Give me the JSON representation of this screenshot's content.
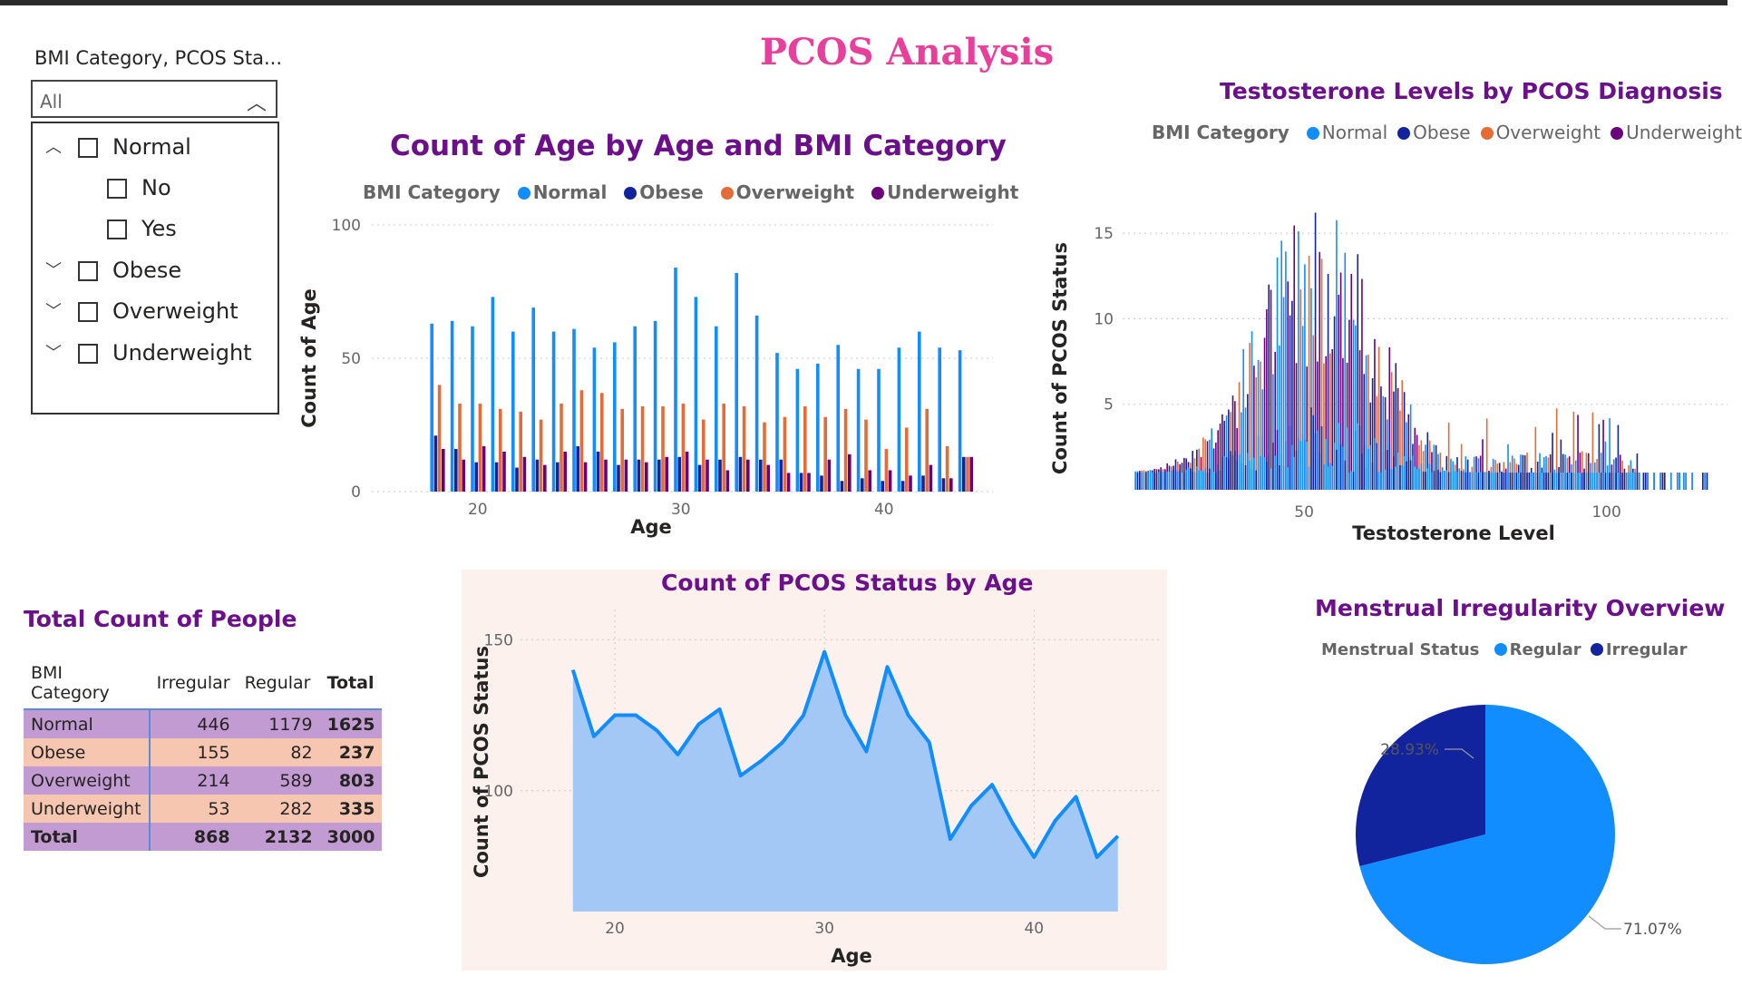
{
  "page_title": "PCOS Analysis",
  "slicer": {
    "header": "BMI Category, PCOS Sta...",
    "selected": "All",
    "items": [
      {
        "label": "Normal",
        "expanded": true,
        "children": [
          "No",
          "Yes"
        ]
      },
      {
        "label": "Obese",
        "expanded": false
      },
      {
        "label": "Overweight",
        "expanded": false
      },
      {
        "label": "Underweight",
        "expanded": false
      }
    ]
  },
  "colors": {
    "normal": "#118dff",
    "obese": "#12239e",
    "overweight": "#e66c37",
    "underweight": "#6b007b",
    "title": "#6b0f8a",
    "page_title": "#e83e9c",
    "area_fill": "#a4c8f5",
    "area_line": "#118dff",
    "area_bg": "#fdf1ee"
  },
  "bar_chart": {
    "title": "Count of Age by Age and BMI Category",
    "legend_title": "BMI Category",
    "legend": [
      "Normal",
      "Obese",
      "Overweight",
      "Underweight"
    ],
    "xlabel": "Age",
    "ylabel": "Count of Age",
    "x_ticks": [
      "20",
      "30",
      "40"
    ],
    "y_ticks": [
      "0",
      "50",
      "100"
    ]
  },
  "scatter_chart": {
    "title": "Testosterone Levels by PCOS Diagnosis",
    "legend_title": "BMI Category",
    "legend": [
      "Normal",
      "Obese",
      "Overweight",
      "Underweight"
    ],
    "xlabel": "Testosterone Level",
    "ylabel": "Count of PCOS Status",
    "x_ticks": [
      "50",
      "100"
    ],
    "y_ticks": [
      "5",
      "10",
      "15"
    ]
  },
  "table": {
    "title": "Total Count of People",
    "headers": [
      "BMI Category",
      "Irregular",
      "Regular",
      "Total"
    ],
    "rows": [
      [
        "Normal",
        "446",
        "1179",
        "1625"
      ],
      [
        "Obese",
        "155",
        "82",
        "237"
      ],
      [
        "Overweight",
        "214",
        "589",
        "803"
      ],
      [
        "Underweight",
        "53",
        "282",
        "335"
      ]
    ],
    "total": [
      "Total",
      "868",
      "2132",
      "3000"
    ]
  },
  "area_chart": {
    "title": "Count of PCOS Status by Age",
    "xlabel": "Age",
    "ylabel": "Count of PCOS Status",
    "x_ticks": [
      "20",
      "30",
      "40"
    ],
    "y_ticks": [
      "100",
      "150"
    ]
  },
  "pie_chart": {
    "title": "Menstrual Irregularity Overview",
    "legend_title": "Menstrual Status",
    "legend": [
      "Regular",
      "Irregular"
    ],
    "label_regular": "71.07%",
    "label_irregular": "28.93%"
  },
  "chart_data": [
    {
      "type": "bar",
      "title": "Count of Age by Age and BMI Category",
      "xlabel": "Age",
      "ylabel": "Count of Age",
      "ylim": [
        0,
        100
      ],
      "grid": true,
      "legend_position": "top",
      "categories": [
        18,
        19,
        20,
        21,
        22,
        23,
        24,
        25,
        26,
        27,
        28,
        29,
        30,
        31,
        32,
        33,
        34,
        35,
        36,
        37,
        38,
        39,
        40,
        41,
        42,
        43,
        44
      ],
      "series": [
        {
          "name": "Normal",
          "values": [
            63,
            64,
            62,
            73,
            60,
            69,
            60,
            61,
            54,
            56,
            62,
            64,
            84,
            73,
            62,
            82,
            66,
            52,
            46,
            48,
            55,
            46,
            46,
            54,
            60,
            54,
            53
          ]
        },
        {
          "name": "Obese",
          "values": [
            21,
            16,
            11,
            11,
            9,
            12,
            11,
            17,
            15,
            10,
            12,
            12,
            13,
            10,
            12,
            13,
            12,
            12,
            7,
            6,
            4,
            5,
            4,
            4,
            6,
            5,
            13
          ]
        },
        {
          "name": "Overweight",
          "values": [
            40,
            33,
            33,
            31,
            30,
            27,
            33,
            38,
            37,
            31,
            32,
            32,
            33,
            27,
            33,
            32,
            26,
            28,
            32,
            28,
            31,
            27,
            16,
            24,
            31,
            17,
            13
          ]
        },
        {
          "name": "Underweight",
          "values": [
            16,
            12,
            17,
            15,
            13,
            10,
            15,
            11,
            12,
            12,
            11,
            13,
            15,
            12,
            8,
            12,
            10,
            7,
            7,
            12,
            14,
            8,
            8,
            6,
            10,
            5,
            13
          ]
        }
      ]
    },
    {
      "type": "bar",
      "title": "Testosterone Levels by PCOS Diagnosis",
      "xlabel": "Testosterone Level",
      "ylabel": "Count of PCOS Status",
      "xlim": [
        20,
        120
      ],
      "ylim": [
        0,
        18
      ],
      "grid": true,
      "legend_position": "top",
      "series": [
        {
          "name": "Normal",
          "values": "distribution of ~370 values, mode near 50"
        },
        {
          "name": "Obese"
        },
        {
          "name": "Overweight"
        },
        {
          "name": "Underweight"
        }
      ]
    },
    {
      "type": "table",
      "title": "Total Count of People",
      "columns": [
        "BMI Category",
        "Irregular",
        "Regular",
        "Total"
      ],
      "rows": [
        [
          "Normal",
          446,
          1179,
          1625
        ],
        [
          "Obese",
          155,
          82,
          237
        ],
        [
          "Overweight",
          214,
          589,
          803
        ],
        [
          "Underweight",
          53,
          282,
          335
        ],
        [
          "Total",
          868,
          2132,
          3000
        ]
      ]
    },
    {
      "type": "area",
      "title": "Count of PCOS Status by Age",
      "xlabel": "Age",
      "ylabel": "Count of PCOS Status",
      "x": [
        18,
        19,
        20,
        21,
        22,
        23,
        24,
        25,
        26,
        27,
        28,
        29,
        30,
        31,
        32,
        33,
        34,
        35,
        36,
        37,
        38,
        39,
        40,
        41,
        42,
        43,
        44
      ],
      "values": [
        140,
        118,
        125,
        125,
        120,
        112,
        122,
        127,
        105,
        110,
        116,
        125,
        146,
        125,
        113,
        141,
        125,
        116,
        84,
        95,
        102,
        89,
        78,
        90,
        98,
        78,
        85
      ],
      "ylim": [
        60,
        160
      ],
      "grid": true
    },
    {
      "type": "pie",
      "title": "Menstrual Irregularity Overview",
      "legend_title": "Menstrual Status",
      "categories": [
        "Regular",
        "Irregular"
      ],
      "values": [
        71.07,
        28.93
      ]
    }
  ]
}
